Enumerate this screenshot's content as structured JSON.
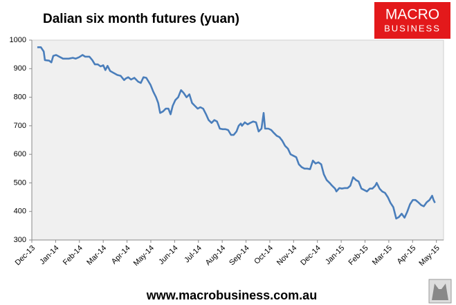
{
  "chart_data": {
    "type": "line",
    "title": "Dalian six month futures (yuan)",
    "xlim": [
      0,
      17.3
    ],
    "xticks": [
      {
        "value": 0,
        "label": "Dec-13"
      },
      {
        "value": 1,
        "label": "Jan-14"
      },
      {
        "value": 2,
        "label": "Feb-14"
      },
      {
        "value": 3,
        "label": "Mar-14"
      },
      {
        "value": 4,
        "label": "Apr-14"
      },
      {
        "value": 5,
        "label": "May-14"
      },
      {
        "value": 6,
        "label": "Jun-14"
      },
      {
        "value": 7,
        "label": "Jul-14"
      },
      {
        "value": 8,
        "label": "Aug-14"
      },
      {
        "value": 9,
        "label": "Sep-14"
      },
      {
        "value": 10,
        "label": "Oct-14"
      },
      {
        "value": 11,
        "label": "Nov-14"
      },
      {
        "value": 12,
        "label": "Dec-14"
      },
      {
        "value": 13,
        "label": "Jan-15"
      },
      {
        "value": 14,
        "label": "Feb-15"
      },
      {
        "value": 15,
        "label": "Mar-15"
      },
      {
        "value": 16,
        "label": "Apr-15"
      },
      {
        "value": 17,
        "label": "May-15"
      }
    ],
    "ylim": [
      300,
      1000
    ],
    "yticks": [
      300,
      400,
      500,
      600,
      700,
      800,
      900,
      1000
    ],
    "grid": false,
    "color": "#4a7ebb",
    "x": [
      0.23,
      0.38,
      0.5,
      0.55,
      0.73,
      0.82,
      0.9,
      1.02,
      1.2,
      1.31,
      1.55,
      1.72,
      1.84,
      1.98,
      2.13,
      2.24,
      2.42,
      2.54,
      2.65,
      2.77,
      2.89,
      3.0,
      3.09,
      3.18,
      3.29,
      3.44,
      3.59,
      3.73,
      3.88,
      3.94,
      4.05,
      4.17,
      4.31,
      4.46,
      4.58,
      4.69,
      4.81,
      4.99,
      5.1,
      5.22,
      5.31,
      5.39,
      5.51,
      5.63,
      5.74,
      5.83,
      5.92,
      6.03,
      6.15,
      6.27,
      6.38,
      6.5,
      6.62,
      6.73,
      6.85,
      6.97,
      7.08,
      7.2,
      7.32,
      7.43,
      7.55,
      7.67,
      7.78,
      7.9,
      8.02,
      8.13,
      8.25,
      8.37,
      8.48,
      8.6,
      8.69,
      8.78,
      8.83,
      8.95,
      9.07,
      9.18,
      9.3,
      9.42,
      9.53,
      9.65,
      9.74,
      9.8,
      9.94,
      10.06,
      10.17,
      10.29,
      10.41,
      10.52,
      10.64,
      10.76,
      10.87,
      10.99,
      11.11,
      11.22,
      11.34,
      11.46,
      11.57,
      11.69,
      11.81,
      11.92,
      12.04,
      12.16,
      12.27,
      12.39,
      12.51,
      12.62,
      12.74,
      12.8,
      12.92,
      13.03,
      13.15,
      13.27,
      13.38,
      13.5,
      13.62,
      13.73,
      13.85,
      13.97,
      14.08,
      14.2,
      14.31,
      14.43,
      14.49,
      14.61,
      14.72,
      14.84,
      14.96,
      15.07,
      15.19,
      15.31,
      15.42,
      15.54,
      15.66,
      15.77,
      15.89,
      16.01,
      16.12,
      16.24,
      16.36,
      16.47,
      16.59,
      16.71,
      16.82,
      16.88,
      16.94
    ],
    "values": [
      975,
      975,
      960,
      930,
      928,
      922,
      945,
      948,
      940,
      935,
      935,
      938,
      935,
      940,
      948,
      942,
      942,
      930,
      915,
      915,
      908,
      912,
      895,
      910,
      892,
      885,
      878,
      875,
      860,
      865,
      870,
      862,
      868,
      855,
      850,
      870,
      868,
      843,
      820,
      800,
      780,
      745,
      750,
      760,
      760,
      740,
      770,
      790,
      800,
      825,
      815,
      800,
      810,
      780,
      770,
      760,
      765,
      760,
      740,
      720,
      710,
      720,
      715,
      690,
      688,
      688,
      685,
      668,
      668,
      680,
      700,
      708,
      700,
      712,
      705,
      710,
      715,
      712,
      680,
      690,
      745,
      690,
      690,
      685,
      675,
      665,
      660,
      648,
      630,
      620,
      600,
      595,
      590,
      565,
      555,
      550,
      550,
      548,
      578,
      568,
      572,
      565,
      530,
      510,
      500,
      490,
      480,
      470,
      482,
      480,
      482,
      482,
      490,
      520,
      510,
      505,
      480,
      475,
      470,
      480,
      480,
      490,
      500,
      480,
      470,
      465,
      450,
      430,
      415,
      375,
      380,
      392,
      378,
      398,
      425,
      440,
      440,
      432,
      422,
      418,
      432,
      440,
      455,
      440,
      430
    ]
  },
  "logo": {
    "line1": "MACRO",
    "line2": "BUSINESS"
  },
  "footer": "www.macrobusiness.com.au"
}
